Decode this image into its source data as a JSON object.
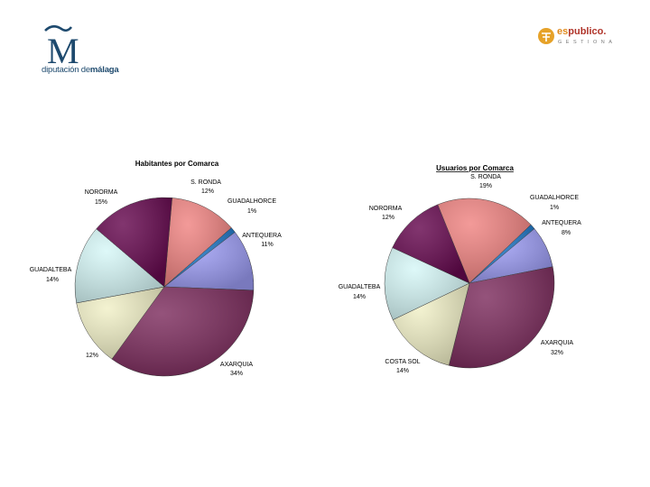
{
  "header": {
    "left_logo": {
      "letter": "M",
      "tagline_regular": "diputación de",
      "tagline_bold": "málaga"
    },
    "right_logo": {
      "brand_prefix": "es",
      "brand_name": "publico.",
      "subtitle": "GESTIONA"
    }
  },
  "chart_data": [
    {
      "type": "pie",
      "title": "Habitantes por Comarca",
      "slices": [
        {
          "label": "S. RONDA",
          "value": 12,
          "pct": "12%",
          "color": "#f08482"
        },
        {
          "label": "GUADALHORCE",
          "value": 1,
          "pct": "1%",
          "color": "#1f78c8"
        },
        {
          "label": "ANTEQUERA",
          "value": 11,
          "pct": "11%",
          "color": "#9b9bf2"
        },
        {
          "label": "AXARQUIA",
          "value": 34,
          "pct": "34%",
          "color": "#7d2d5e"
        },
        {
          "label": "",
          "value": 12,
          "pct": "12%",
          "color": "#f1f0c7"
        },
        {
          "label": "GUADALTEBA",
          "value": 14,
          "pct": "14%",
          "color": "#d6f7f7"
        },
        {
          "label": "NORORMA",
          "value": 15,
          "pct": "15%",
          "color": "#66094f"
        }
      ]
    },
    {
      "type": "pie",
      "title": "Usuarios por Comarca",
      "slices": [
        {
          "label": "S. RONDA",
          "value": 19,
          "pct": "19%",
          "color": "#f08482"
        },
        {
          "label": "GUADALHORCE",
          "value": 1,
          "pct": "1%",
          "color": "#1f78c8"
        },
        {
          "label": "ANTEQUERA",
          "value": 8,
          "pct": "8%",
          "color": "#9b9bf2"
        },
        {
          "label": "AXARQUIA",
          "value": 32,
          "pct": "32%",
          "color": "#7d2d5e"
        },
        {
          "label": "COSTA SOL",
          "value": 14,
          "pct": "14%",
          "color": "#f1f0c7"
        },
        {
          "label": "GUADALTEBA",
          "value": 14,
          "pct": "14%",
          "color": "#d6f7f7"
        },
        {
          "label": "NORORMA",
          "value": 12,
          "pct": "12%",
          "color": "#66094f"
        }
      ]
    }
  ]
}
